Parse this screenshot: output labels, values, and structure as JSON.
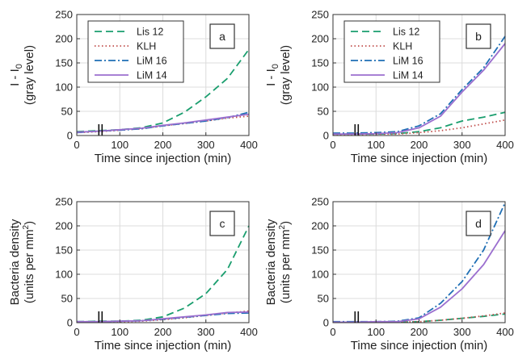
{
  "chart_data": [
    {
      "type": "line",
      "panel_label": "a",
      "ylabel_line1": "I - I",
      "ylabel_sub": "0",
      "ylabel_line2": "(gray level)",
      "xlabel": "Time since injection (min)",
      "xlim": [
        0,
        400
      ],
      "ylim": [
        0,
        250
      ],
      "xticks": [
        0,
        100,
        200,
        300,
        400
      ],
      "yticks": [
        0,
        50,
        100,
        150,
        200,
        250
      ],
      "grid": true,
      "injection_marker_x": 55,
      "legend": {
        "position": "top-left",
        "entries": [
          "Lis 12",
          "KLH",
          "LiM 16",
          "LiM 14"
        ]
      },
      "series": [
        {
          "name": "Lis 12",
          "color": "#1a9e6e",
          "style": "dash",
          "x": [
            0,
            50,
            100,
            150,
            200,
            250,
            300,
            350,
            400
          ],
          "y": [
            8,
            10,
            12,
            16,
            26,
            48,
            80,
            118,
            178
          ]
        },
        {
          "name": "KLH",
          "color": "#c0504d",
          "style": "dot",
          "x": [
            0,
            50,
            100,
            150,
            200,
            250,
            300,
            350,
            400
          ],
          "y": [
            6,
            8,
            11,
            14,
            20,
            25,
            30,
            36,
            40
          ]
        },
        {
          "name": "LiM 16",
          "color": "#1f6fb5",
          "style": "dashdot",
          "x": [
            0,
            50,
            100,
            150,
            200,
            250,
            300,
            350,
            400
          ],
          "y": [
            6,
            9,
            11,
            14,
            20,
            25,
            30,
            37,
            48
          ]
        },
        {
          "name": "LiM 14",
          "color": "#9b6fcf",
          "style": "solid",
          "x": [
            0,
            50,
            100,
            150,
            200,
            250,
            300,
            350,
            400
          ],
          "y": [
            7,
            9,
            12,
            15,
            21,
            26,
            32,
            38,
            44
          ]
        }
      ]
    },
    {
      "type": "line",
      "panel_label": "b",
      "ylabel_line1": "I - I",
      "ylabel_sub": "0",
      "ylabel_line2": "(gray level)",
      "xlabel": "Time since injection (min)",
      "xlim": [
        0,
        400
      ],
      "ylim": [
        0,
        250
      ],
      "xticks": [
        0,
        100,
        200,
        300,
        400
      ],
      "yticks": [
        0,
        50,
        100,
        150,
        200,
        250
      ],
      "grid": true,
      "injection_marker_x": 55,
      "legend": {
        "position": "top-left",
        "entries": [
          "Lis 12",
          "KLH",
          "LiM 16",
          "LiM 14"
        ]
      },
      "series": [
        {
          "name": "Lis 12",
          "color": "#1a9e6e",
          "style": "dash",
          "x": [
            0,
            50,
            100,
            150,
            200,
            250,
            300,
            350,
            400
          ],
          "y": [
            3,
            3,
            3,
            4,
            8,
            16,
            30,
            38,
            48
          ]
        },
        {
          "name": "KLH",
          "color": "#c0504d",
          "style": "dot",
          "x": [
            0,
            50,
            100,
            150,
            200,
            250,
            300,
            350,
            400
          ],
          "y": [
            2,
            2,
            3,
            3,
            6,
            10,
            16,
            24,
            32
          ]
        },
        {
          "name": "LiM 16",
          "color": "#1f6fb5",
          "style": "dashdot",
          "x": [
            0,
            50,
            100,
            150,
            200,
            250,
            300,
            350,
            400
          ],
          "y": [
            5,
            5,
            6,
            8,
            20,
            45,
            95,
            140,
            205
          ]
        },
        {
          "name": "LiM 14",
          "color": "#9b6fcf",
          "style": "solid",
          "x": [
            0,
            50,
            100,
            150,
            200,
            250,
            300,
            350,
            400
          ],
          "y": [
            3,
            3,
            4,
            6,
            16,
            40,
            90,
            135,
            190
          ]
        }
      ]
    },
    {
      "type": "line",
      "panel_label": "c",
      "ylabel_line1": "Bacteria density",
      "ylabel_line2": "(units per mm",
      "ylabel_sup": "2",
      "ylabel_line2_end": ")",
      "xlabel": "Time since injection (min)",
      "xlim": [
        0,
        400
      ],
      "ylim": [
        0,
        250
      ],
      "xticks": [
        0,
        100,
        200,
        300,
        400
      ],
      "yticks": [
        0,
        50,
        100,
        150,
        200,
        250
      ],
      "grid": true,
      "injection_marker_x": 55,
      "series": [
        {
          "name": "Lis 12",
          "color": "#1a9e6e",
          "style": "dash",
          "x": [
            0,
            50,
            100,
            150,
            200,
            250,
            300,
            350,
            400
          ],
          "y": [
            2,
            3,
            3,
            5,
            12,
            30,
            60,
            110,
            200
          ]
        },
        {
          "name": "KLH",
          "color": "#c0504d",
          "style": "dot",
          "x": [
            0,
            50,
            100,
            150,
            200,
            250,
            300,
            350,
            400
          ],
          "y": [
            1,
            2,
            2,
            3,
            6,
            10,
            15,
            20,
            24
          ]
        },
        {
          "name": "LiM 16",
          "color": "#1f6fb5",
          "style": "dashdot",
          "x": [
            0,
            50,
            100,
            150,
            200,
            250,
            300,
            350,
            400
          ],
          "y": [
            2,
            2,
            3,
            4,
            7,
            11,
            15,
            19,
            20
          ]
        },
        {
          "name": "LiM 14",
          "color": "#9b6fcf",
          "style": "solid",
          "x": [
            0,
            50,
            100,
            150,
            200,
            250,
            300,
            350,
            400
          ],
          "y": [
            2,
            2,
            3,
            4,
            8,
            12,
            16,
            21,
            22
          ]
        }
      ]
    },
    {
      "type": "line",
      "panel_label": "d",
      "ylabel_line1": "Bacteria density",
      "ylabel_line2": "(units per mm",
      "ylabel_sup": "2",
      "ylabel_line2_end": ")",
      "xlabel": "Time since injection (min)",
      "xlim": [
        0,
        400
      ],
      "ylim": [
        0,
        250
      ],
      "xticks": [
        0,
        100,
        200,
        300,
        400
      ],
      "yticks": [
        0,
        50,
        100,
        150,
        200,
        250
      ],
      "grid": true,
      "injection_marker_x": 55,
      "series": [
        {
          "name": "Lis 12",
          "color": "#1a9e6e",
          "style": "dash",
          "x": [
            0,
            50,
            100,
            150,
            200,
            250,
            300,
            350,
            400
          ],
          "y": [
            1,
            1,
            1,
            1,
            2,
            5,
            9,
            13,
            18
          ]
        },
        {
          "name": "KLH",
          "color": "#c0504d",
          "style": "dot",
          "x": [
            0,
            50,
            100,
            150,
            200,
            250,
            300,
            350,
            400
          ],
          "y": [
            1,
            1,
            1,
            1,
            2,
            5,
            9,
            14,
            20
          ]
        },
        {
          "name": "LiM 16",
          "color": "#1f6fb5",
          "style": "dashdot",
          "x": [
            0,
            50,
            100,
            150,
            200,
            250,
            300,
            350,
            400
          ],
          "y": [
            2,
            2,
            2,
            3,
            10,
            40,
            85,
            150,
            248
          ]
        },
        {
          "name": "LiM 14",
          "color": "#9b6fcf",
          "style": "solid",
          "x": [
            0,
            50,
            100,
            150,
            200,
            250,
            300,
            350,
            400
          ],
          "y": [
            1,
            1,
            2,
            2,
            8,
            32,
            70,
            120,
            190
          ]
        }
      ]
    }
  ]
}
